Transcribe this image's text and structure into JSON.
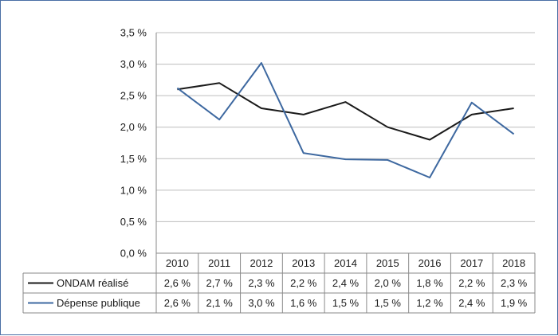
{
  "chart_data": {
    "type": "line",
    "categories": [
      "2010",
      "2011",
      "2012",
      "2013",
      "2014",
      "2015",
      "2016",
      "2017",
      "2018"
    ],
    "ylim": [
      0,
      3.5
    ],
    "yticks": [
      "0,0 %",
      "0,5 %",
      "1,0 %",
      "1,5 %",
      "2,0 %",
      "2,5 %",
      "3,0 %",
      "3,5 %"
    ],
    "grid": true,
    "legend": "data table below chart",
    "series": [
      {
        "name": "ONDAM réalisé",
        "color": "#1a1a1a",
        "values": [
          2.6,
          2.7,
          2.3,
          2.2,
          2.4,
          2.0,
          1.8,
          2.2,
          2.3
        ],
        "labels": [
          "2,6 %",
          "2,7 %",
          "2,3 %",
          "2,2 %",
          "2,4 %",
          "2,0 %",
          "1,8 %",
          "2,2 %",
          "2,3 %"
        ]
      },
      {
        "name": "Dépense publique",
        "color": "#3d68a0",
        "values": [
          2.62,
          2.12,
          3.02,
          1.59,
          1.49,
          1.48,
          1.2,
          2.39,
          1.89
        ],
        "labels": [
          "2,6 %",
          "2,1 %",
          "3,0 %",
          "1,6 %",
          "1,5 %",
          "1,5 %",
          "1,2 %",
          "2,4 %",
          "1,9 %"
        ]
      }
    ]
  }
}
